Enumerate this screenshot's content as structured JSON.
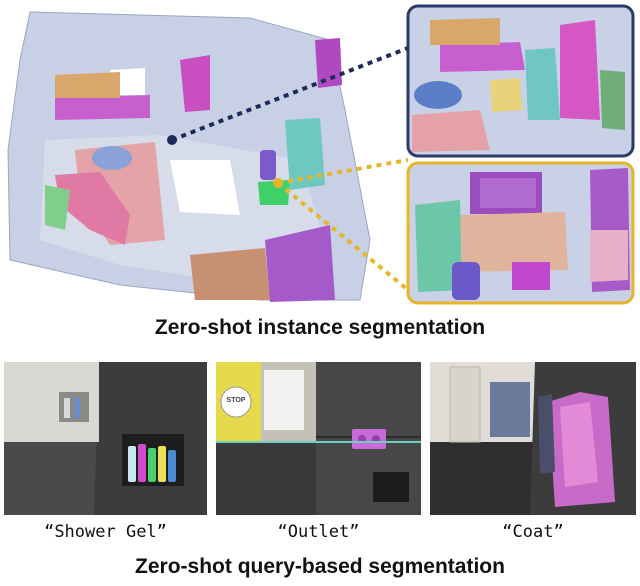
{
  "captions": {
    "instance": "Zero-shot instance segmentation",
    "query": "Zero-shot query-based segmentation"
  },
  "queries": [
    {
      "label": "“Shower Gel”"
    },
    {
      "label": "“Outlet”"
    },
    {
      "label": "“Coat”"
    }
  ],
  "sign_text": "STOP",
  "colors": {
    "inset_top_border": "#2b3a67",
    "inset_bottom_border": "#e8b528",
    "room_gray": "#b9c4dc",
    "magenta": "#c85fcf",
    "pink": "#e6a0b0",
    "green": "#5fcf7a",
    "purple": "#9b4dbf"
  }
}
